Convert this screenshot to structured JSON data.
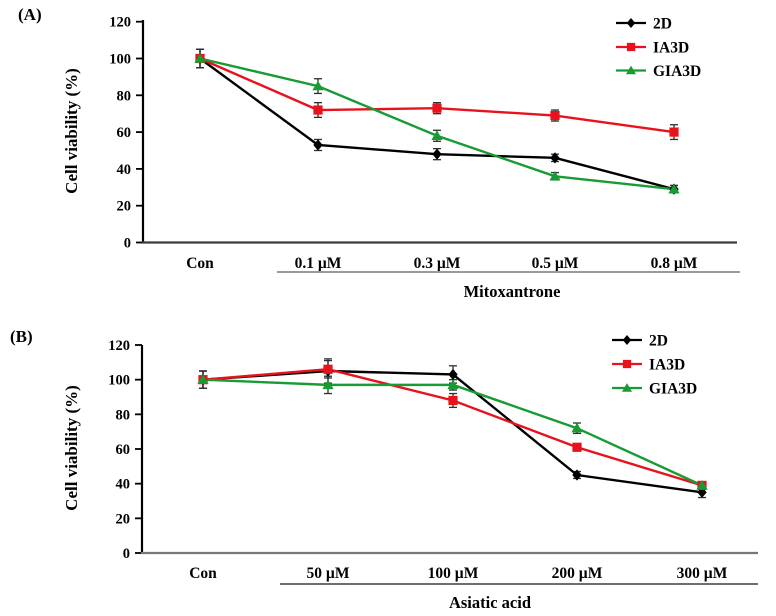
{
  "figure": {
    "background": "#ffffff",
    "title": "Cell viability line charts"
  },
  "colors": {
    "series_2d": "#000000",
    "series_ia3d": "#e8121d",
    "series_gia3d": "#189b33",
    "error_bar": "#2e2e2e"
  },
  "chart_data": [
    {
      "type": "line",
      "panel": "(A)",
      "ylabel": "Cell viability (%)",
      "xlabel": "Mitoxantrone",
      "categories": [
        "Con",
        "0.1 µM",
        "0.3 µM",
        "0.5 µM",
        "0.8 µM"
      ],
      "ylim": [
        0,
        120
      ],
      "yticks": [
        0,
        20,
        40,
        60,
        80,
        100,
        120
      ],
      "grid": false,
      "legend_position": "top-right",
      "bracket_covers": [
        "0.1 µM",
        "0.8 µM"
      ],
      "series": [
        {
          "name": "2D",
          "color": "#000000",
          "marker": "diamond",
          "values": [
            100,
            53,
            48,
            46,
            29
          ],
          "errors": [
            5,
            3,
            3,
            2,
            2
          ]
        },
        {
          "name": "IA3D",
          "color": "#e8121d",
          "marker": "square",
          "values": [
            100,
            72,
            73,
            69,
            60
          ],
          "errors": [
            5,
            4,
            3,
            3,
            4
          ]
        },
        {
          "name": "GIA3D",
          "color": "#189b33",
          "marker": "triangle",
          "values": [
            100,
            85,
            58,
            36,
            29
          ],
          "errors": [
            5,
            4,
            3,
            2,
            2
          ]
        }
      ]
    },
    {
      "type": "line",
      "panel": "(B)",
      "ylabel": "Cell viability (%)",
      "xlabel": "Asiatic acid",
      "categories": [
        "Con",
        "50 µM",
        "100 µM",
        "200 µM",
        "300 µM"
      ],
      "ylim": [
        0,
        120
      ],
      "yticks": [
        0,
        20,
        40,
        60,
        80,
        100,
        120
      ],
      "grid": false,
      "legend_position": "right",
      "bracket_covers": [
        "50 µM",
        "300 µM"
      ],
      "series": [
        {
          "name": "2D",
          "color": "#000000",
          "marker": "diamond",
          "values": [
            100,
            105,
            103,
            45,
            35
          ],
          "errors": [
            5,
            7,
            5,
            2,
            3
          ]
        },
        {
          "name": "IA3D",
          "color": "#e8121d",
          "marker": "square",
          "values": [
            100,
            106,
            88,
            61,
            39
          ],
          "errors": [
            5,
            5,
            4,
            2,
            2
          ]
        },
        {
          "name": "GIA3D",
          "color": "#189b33",
          "marker": "triangle",
          "values": [
            100,
            97,
            97,
            72,
            39
          ],
          "errors": [
            5,
            5,
            3,
            3,
            2
          ]
        }
      ]
    }
  ]
}
